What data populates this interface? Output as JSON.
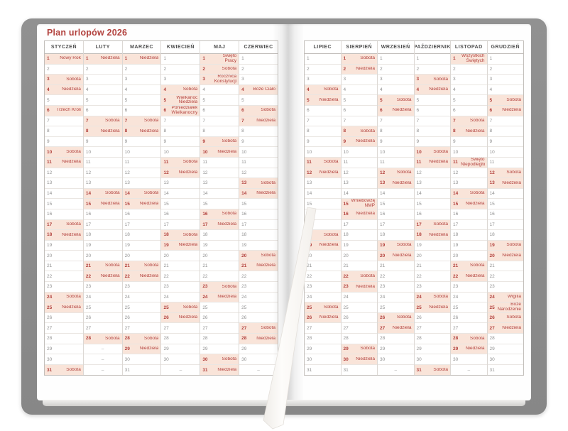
{
  "title": "Plan urlopów 2026",
  "empty_marker": "–",
  "colors": {
    "accent_red": "#b2413d",
    "highlight_bg": "#f9e4d9",
    "cover_gray": "#8c8c8c",
    "day_number_gray": "#909090",
    "header_text": "#4d4d4d"
  },
  "pages": [
    {
      "months": [
        {
          "name": "STYCZEŃ",
          "days": 31,
          "labels": {
            "1": "Nowy Rok",
            "3": "Sobota",
            "4": "Niedziela",
            "6": "Trzech Króli",
            "10": "Sobota",
            "11": "Niedziela",
            "17": "Sobota",
            "18": "Niedziela",
            "24": "Sobota",
            "25": "Niedziela",
            "31": "Sobota"
          }
        },
        {
          "name": "LUTY",
          "days": 28,
          "labels": {
            "1": "Niedziela",
            "7": "Sobota",
            "8": "Niedziela",
            "14": "Sobota",
            "15": "Niedziela",
            "21": "Sobota",
            "22": "Niedziela",
            "28": "Sobota"
          }
        },
        {
          "name": "MARZEC",
          "days": 31,
          "labels": {
            "1": "Niedziela",
            "7": "Sobota",
            "8": "Niedziela",
            "14": "Sobota",
            "15": "Niedziela",
            "21": "Sobota",
            "22": "Niedziela",
            "28": "Sobota",
            "29": "Niedziela"
          }
        },
        {
          "name": "KWIECIEŃ",
          "days": 30,
          "labels": {
            "4": "Sobota",
            "5": "Wielkanoc Niedziela",
            "6": "Poniedziałek Wielkanocny",
            "11": "Sobota",
            "12": "Niedziela",
            "18": "Sobota",
            "19": "Niedziela",
            "25": "Sobota",
            "26": "Niedziela"
          }
        },
        {
          "name": "MAJ",
          "days": 31,
          "labels": {
            "1": "Święto Pracy",
            "2": "Sobota",
            "3": "Rocznica Konstytucji",
            "9": "Sobota",
            "10": "Niedziela",
            "16": "Sobota",
            "17": "Niedziela",
            "23": "Sobota",
            "24": "Niedziela",
            "30": "Sobota",
            "31": "Niedziela"
          }
        },
        {
          "name": "CZERWIEC",
          "days": 30,
          "labels": {
            "4": "Boże Ciało",
            "6": "Sobota",
            "7": "Niedziela",
            "13": "Sobota",
            "14": "Niedziela",
            "20": "Sobota",
            "21": "Niedziela",
            "27": "Sobota",
            "28": "Niedziela"
          }
        }
      ]
    },
    {
      "months": [
        {
          "name": "LIPIEC",
          "days": 31,
          "labels": {
            "4": "Sobota",
            "5": "Niedziela",
            "11": "Sobota",
            "12": "Niedziela",
            "18": "Sobota",
            "19": "Niedziela",
            "25": "Sobota",
            "26": "Niedziela"
          }
        },
        {
          "name": "SIERPIEŃ",
          "days": 31,
          "labels": {
            "1": "Sobota",
            "2": "Niedziela",
            "8": "Sobota",
            "9": "Niedziela",
            "15": "Wniebowzięcie NMP",
            "16": "Niedziela",
            "22": "Sobota",
            "23": "Niedziela",
            "29": "Sobota",
            "30": "Niedziela"
          }
        },
        {
          "name": "WRZESIEŃ",
          "days": 30,
          "labels": {
            "5": "Sobota",
            "6": "Niedziela",
            "12": "Sobota",
            "13": "Niedziela",
            "19": "Sobota",
            "20": "Niedziela",
            "26": "Sobota",
            "27": "Niedziela"
          }
        },
        {
          "name": "PAŹDZIERNIK",
          "days": 31,
          "labels": {
            "3": "Sobota",
            "4": "Niedziela",
            "10": "Sobota",
            "11": "Niedziela",
            "17": "Sobota",
            "18": "Niedziela",
            "24": "Sobota",
            "25": "Niedziela",
            "31": "Sobota"
          }
        },
        {
          "name": "LISTOPAD",
          "days": 30,
          "labels": {
            "1": "Wszystkich Świętych",
            "7": "Sobota",
            "8": "Niedziela",
            "11": "Święto Niepodległości",
            "14": "Sobota",
            "15": "Niedziela",
            "21": "Sobota",
            "22": "Niedziela",
            "28": "Sobota",
            "29": "Niedziela"
          }
        },
        {
          "name": "GRUDZIEŃ",
          "days": 31,
          "labels": {
            "5": "Sobota",
            "6": "Niedziela",
            "12": "Sobota",
            "13": "Niedziela",
            "19": "Sobota",
            "20": "Niedziela",
            "24": "Wigilia",
            "25": "Boże Narodzenie",
            "26": "Sobota",
            "27": "Niedziela"
          }
        }
      ]
    }
  ]
}
